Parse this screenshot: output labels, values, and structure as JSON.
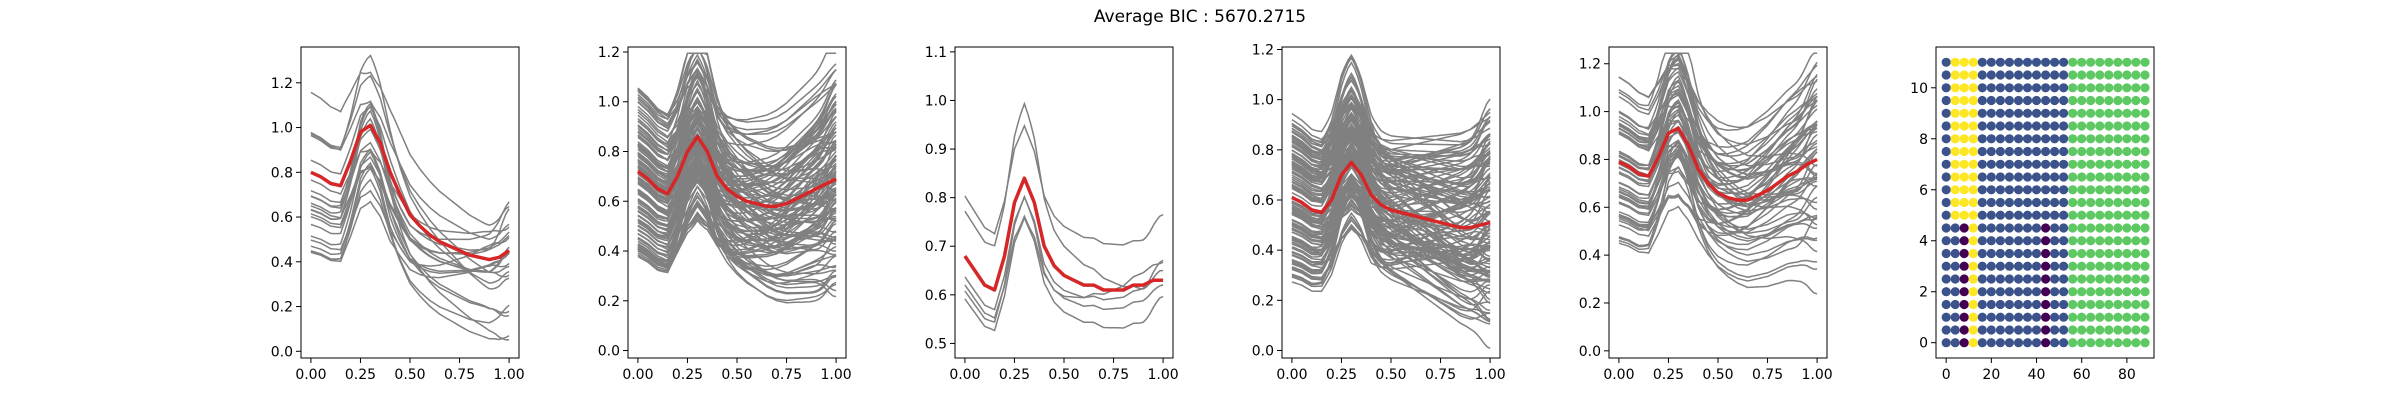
{
  "suptitle": "Average BIC : 5670.2715",
  "colors": {
    "curve": "#808080",
    "mean": "#d62728",
    "axes": "#000000",
    "cluster_palette": [
      "#440154",
      "#3b528b",
      "#21918c",
      "#5ec962",
      "#fde725"
    ]
  },
  "chart_data": [
    {
      "type": "line",
      "panel": 1,
      "xlim": [
        -0.05,
        1.05
      ],
      "ylim": [
        -0.03,
        1.36
      ],
      "xticks": [
        "0.00",
        "0.25",
        "0.50",
        "0.75",
        "1.00"
      ],
      "yticks": [
        "0.0",
        "0.2",
        "0.4",
        "0.6",
        "0.8",
        "1.0",
        "1.2"
      ],
      "n_curves": 22,
      "seed": 11,
      "mean_curve": {
        "x": [
          0.0,
          0.05,
          0.1,
          0.15,
          0.2,
          0.25,
          0.3,
          0.35,
          0.4,
          0.45,
          0.5,
          0.55,
          0.6,
          0.65,
          0.7,
          0.75,
          0.8,
          0.85,
          0.9,
          0.95,
          1.0
        ],
        "y": [
          0.8,
          0.78,
          0.75,
          0.74,
          0.85,
          0.98,
          1.01,
          0.93,
          0.8,
          0.7,
          0.61,
          0.56,
          0.52,
          0.49,
          0.47,
          0.45,
          0.43,
          0.42,
          0.41,
          0.42,
          0.45
        ]
      }
    },
    {
      "type": "line",
      "panel": 2,
      "xlim": [
        -0.05,
        1.05
      ],
      "ylim": [
        -0.03,
        1.22
      ],
      "xticks": [
        "0.00",
        "0.25",
        "0.50",
        "0.75",
        "1.00"
      ],
      "yticks": [
        "0.0",
        "0.2",
        "0.4",
        "0.6",
        "0.8",
        "1.0",
        "1.2"
      ],
      "n_curves": 120,
      "seed": 22,
      "mean_curve": {
        "x": [
          0.0,
          0.05,
          0.1,
          0.15,
          0.2,
          0.25,
          0.3,
          0.35,
          0.4,
          0.45,
          0.5,
          0.55,
          0.6,
          0.65,
          0.7,
          0.75,
          0.8,
          0.85,
          0.9,
          0.95,
          1.0
        ],
        "y": [
          0.72,
          0.69,
          0.65,
          0.63,
          0.7,
          0.8,
          0.86,
          0.8,
          0.7,
          0.65,
          0.62,
          0.6,
          0.59,
          0.58,
          0.58,
          0.59,
          0.61,
          0.63,
          0.65,
          0.67,
          0.69
        ]
      }
    },
    {
      "type": "line",
      "panel": 3,
      "xlim": [
        -0.05,
        1.05
      ],
      "ylim": [
        0.47,
        1.11
      ],
      "xticks": [
        "0.00",
        "0.25",
        "0.50",
        "0.75",
        "1.00"
      ],
      "yticks": [
        "0.5",
        "0.6",
        "0.7",
        "0.8",
        "0.9",
        "1.0",
        "1.1"
      ],
      "n_curves": 6,
      "seed": 33,
      "mean_curve": {
        "x": [
          0.0,
          0.05,
          0.1,
          0.15,
          0.2,
          0.25,
          0.3,
          0.35,
          0.4,
          0.45,
          0.5,
          0.55,
          0.6,
          0.65,
          0.7,
          0.75,
          0.8,
          0.85,
          0.9,
          0.95,
          1.0
        ],
        "y": [
          0.68,
          0.65,
          0.62,
          0.61,
          0.68,
          0.79,
          0.84,
          0.79,
          0.7,
          0.66,
          0.64,
          0.63,
          0.62,
          0.62,
          0.61,
          0.61,
          0.61,
          0.62,
          0.62,
          0.63,
          0.63
        ]
      }
    },
    {
      "type": "line",
      "panel": 4,
      "xlim": [
        -0.05,
        1.05
      ],
      "ylim": [
        -0.03,
        1.21
      ],
      "xticks": [
        "0.00",
        "0.25",
        "0.50",
        "0.75",
        "1.00"
      ],
      "yticks": [
        "0.0",
        "0.2",
        "0.4",
        "0.6",
        "0.8",
        "1.0",
        "1.2"
      ],
      "n_curves": 130,
      "seed": 44,
      "mean_curve": {
        "x": [
          0.0,
          0.05,
          0.1,
          0.15,
          0.2,
          0.25,
          0.3,
          0.35,
          0.4,
          0.45,
          0.5,
          0.55,
          0.6,
          0.65,
          0.7,
          0.75,
          0.8,
          0.85,
          0.9,
          0.95,
          1.0
        ],
        "y": [
          0.61,
          0.59,
          0.56,
          0.55,
          0.6,
          0.7,
          0.75,
          0.7,
          0.62,
          0.58,
          0.56,
          0.55,
          0.54,
          0.53,
          0.52,
          0.51,
          0.5,
          0.49,
          0.49,
          0.5,
          0.51
        ]
      }
    },
    {
      "type": "line",
      "panel": 5,
      "xlim": [
        -0.05,
        1.05
      ],
      "ylim": [
        -0.03,
        1.27
      ],
      "xticks": [
        "0.00",
        "0.25",
        "0.50",
        "0.75",
        "1.00"
      ],
      "yticks": [
        "0.0",
        "0.2",
        "0.4",
        "0.6",
        "0.8",
        "1.0",
        "1.2"
      ],
      "n_curves": 60,
      "seed": 55,
      "mean_curve": {
        "x": [
          0.0,
          0.05,
          0.1,
          0.15,
          0.2,
          0.25,
          0.3,
          0.35,
          0.4,
          0.45,
          0.5,
          0.55,
          0.6,
          0.65,
          0.7,
          0.75,
          0.8,
          0.85,
          0.9,
          0.95,
          1.0
        ],
        "y": [
          0.79,
          0.77,
          0.74,
          0.73,
          0.81,
          0.91,
          0.93,
          0.86,
          0.76,
          0.7,
          0.66,
          0.64,
          0.63,
          0.63,
          0.65,
          0.67,
          0.7,
          0.73,
          0.75,
          0.78,
          0.8
        ]
      }
    },
    {
      "type": "scatter",
      "panel": 6,
      "xlim": [
        -4.5,
        92
      ],
      "ylim": [
        -0.6,
        11.6
      ],
      "xticks": [
        "0",
        "20",
        "40",
        "60",
        "80"
      ],
      "yticks": [
        "0",
        "2",
        "4",
        "6",
        "8",
        "10"
      ],
      "grid": {
        "x": [
          0,
          4,
          8,
          12,
          16,
          20,
          24,
          28,
          32,
          36,
          40,
          44,
          48,
          52,
          56,
          60,
          64,
          68,
          72,
          76,
          80,
          84,
          88
        ],
        "y": [
          0,
          0.5,
          1,
          1.5,
          2,
          2.5,
          3,
          3.5,
          4,
          4.5,
          5,
          5.5,
          6,
          6.5,
          7,
          7.5,
          8,
          8.5,
          9,
          9.5,
          10,
          10.5,
          11
        ]
      },
      "cluster_by_column_top": [
        1,
        4,
        4,
        4,
        1,
        1,
        1,
        1,
        1,
        1,
        1,
        1,
        1,
        1,
        3,
        3,
        3,
        3,
        3,
        3,
        3,
        3,
        3
      ],
      "cluster_by_column_bottom": [
        1,
        1,
        0,
        4,
        1,
        1,
        1,
        1,
        1,
        1,
        1,
        0,
        1,
        1,
        3,
        3,
        3,
        3,
        3,
        3,
        3,
        3,
        3
      ],
      "bottom_rows_max_y": 4.5
    }
  ]
}
